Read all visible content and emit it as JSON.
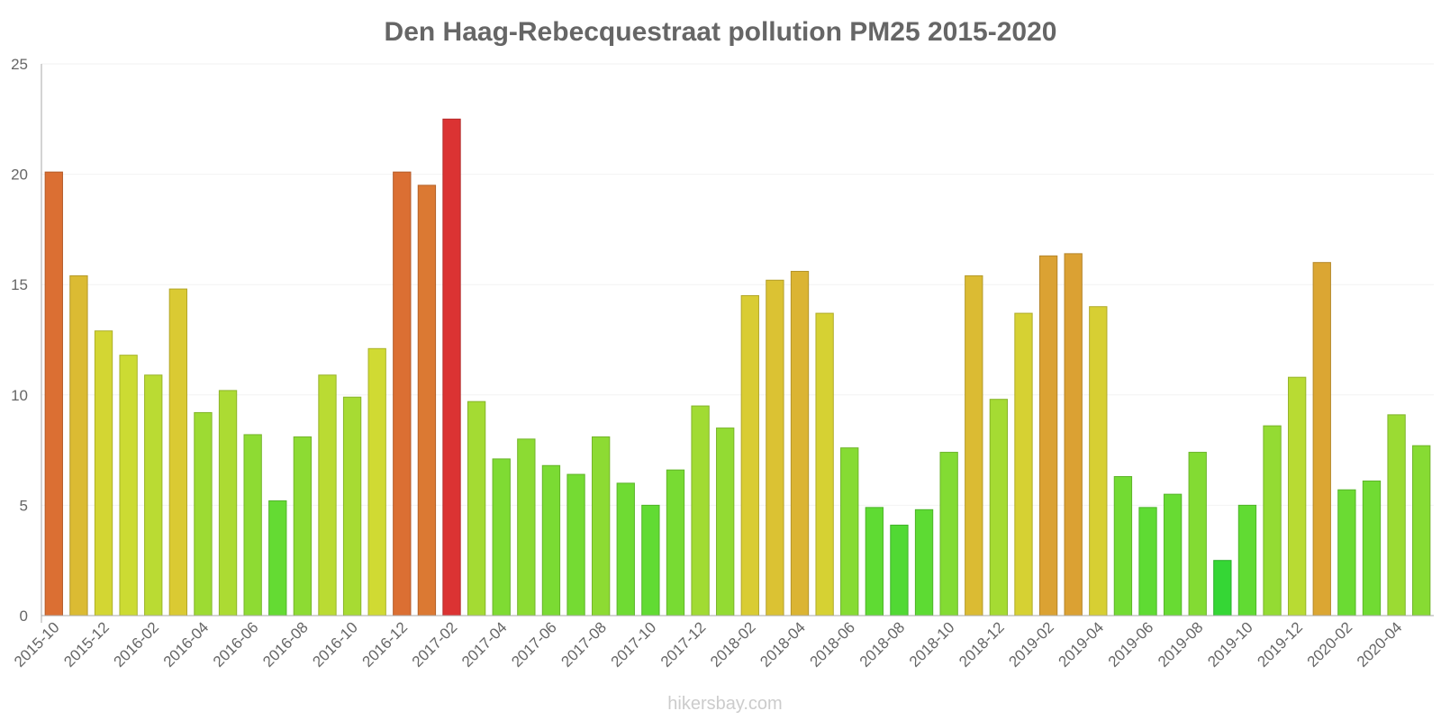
{
  "chart_data": {
    "type": "bar",
    "title": "Den Haag-Rebecquestraat pollution PM25 2015-2020",
    "xlabel": "",
    "ylabel": "",
    "ylim": [
      0,
      25
    ],
    "yticks": [
      0,
      5,
      10,
      15,
      20,
      25
    ],
    "grid": true,
    "categories": [
      "2015-10",
      "2015-11",
      "2015-12",
      "2016-01",
      "2016-02",
      "2016-03",
      "2016-04",
      "2016-05",
      "2016-06",
      "2016-07",
      "2016-08",
      "2016-09",
      "2016-10",
      "2016-11",
      "2016-12",
      "2017-01",
      "2017-02",
      "2017-03",
      "2017-04",
      "2017-05",
      "2017-06",
      "2017-07",
      "2017-08",
      "2017-09",
      "2017-10",
      "2017-11",
      "2017-12",
      "2018-01",
      "2018-02",
      "2018-03",
      "2018-04",
      "2018-05",
      "2018-06",
      "2018-07",
      "2018-08",
      "2018-09",
      "2018-10",
      "2018-11",
      "2018-12",
      "2019-01",
      "2019-02",
      "2019-03",
      "2019-04",
      "2019-05",
      "2019-06",
      "2019-07",
      "2019-08",
      "2019-09",
      "2019-10",
      "2019-11",
      "2019-12",
      "2020-01",
      "2020-02",
      "2020-03",
      "2020-04",
      "2020-05"
    ],
    "values": [
      20.1,
      15.4,
      12.9,
      11.8,
      10.9,
      14.8,
      9.2,
      10.2,
      8.2,
      5.2,
      8.1,
      10.9,
      9.9,
      12.1,
      20.1,
      19.5,
      22.5,
      9.7,
      7.1,
      8.0,
      6.8,
      6.4,
      8.1,
      6.0,
      5.0,
      6.6,
      9.5,
      8.5,
      14.5,
      15.2,
      15.6,
      13.7,
      7.6,
      4.9,
      4.1,
      4.8,
      7.4,
      15.4,
      9.8,
      13.7,
      16.3,
      16.4,
      14.0,
      6.3,
      4.9,
      5.5,
      7.4,
      2.5,
      5.0,
      8.6,
      10.8,
      16.0,
      5.7,
      6.1,
      9.1,
      7.7
    ],
    "colors": {
      "axis": "#aaaaaa",
      "grid": "#f2f2f2",
      "text": "#666666"
    }
  },
  "watermark": "hikersbay.com"
}
